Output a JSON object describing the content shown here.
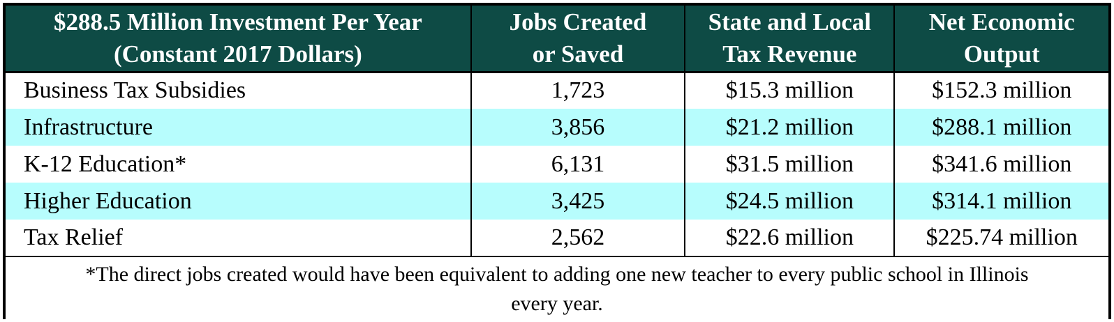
{
  "colors": {
    "header_bg": "#0E4B45",
    "header_text": "#FFFFFF",
    "row_stripe_bg": "#B7FDFD",
    "row_bg": "#FFFFFF",
    "border": "#000000"
  },
  "table": {
    "headers": [
      {
        "line1": "$288.5 Million Investment Per Year",
        "line2": "(Constant 2017 Dollars)"
      },
      {
        "line1": "Jobs Created",
        "line2": "or Saved"
      },
      {
        "line1": "State and Local",
        "line2": "Tax Revenue"
      },
      {
        "line1": "Net Economic",
        "line2": "Output"
      }
    ],
    "rows": [
      {
        "label": "Business Tax Subsidies",
        "jobs": "1,723",
        "tax": "$15.3 million",
        "output": "$152.3 million"
      },
      {
        "label": "Infrastructure",
        "jobs": "3,856",
        "tax": "$21.2 million",
        "output": "$288.1 million"
      },
      {
        "label": "K-12 Education*",
        "jobs": "6,131",
        "tax": "$31.5 million",
        "output": "$341.6 million"
      },
      {
        "label": "Higher Education",
        "jobs": "3,425",
        "tax": "$24.5 million",
        "output": "$314.1 million"
      },
      {
        "label": "Tax Relief",
        "jobs": "2,562",
        "tax": "$22.6 million",
        "output": "$225.74 million"
      }
    ],
    "footnote_lines": [
      "*The direct jobs created would have been equivalent to adding one new teacher to every public school in Illinois",
      "every year."
    ]
  },
  "chart_data": {
    "type": "table",
    "title": "$288.5 Million Investment Per Year (Constant 2017 Dollars)",
    "columns": [
      "$288.5 Million Investment Per Year (Constant 2017 Dollars)",
      "Jobs Created or Saved",
      "State and Local Tax Revenue",
      "Net Economic Output"
    ],
    "rows": [
      [
        "Business Tax Subsidies",
        "1,723",
        "$15.3 million",
        "$152.3 million"
      ],
      [
        "Infrastructure",
        "3,856",
        "$21.2 million",
        "$288.1 million"
      ],
      [
        "K-12 Education*",
        "6,131",
        "$31.5 million",
        "$341.6 million"
      ],
      [
        "Higher Education",
        "3,425",
        "$24.5 million",
        "$314.1 million"
      ],
      [
        "Tax Relief",
        "2,562",
        "$22.6 million",
        "$225.74 million"
      ]
    ],
    "numeric": {
      "categories": [
        "Business Tax Subsidies",
        "Infrastructure",
        "K-12 Education",
        "Higher Education",
        "Tax Relief"
      ],
      "series": [
        {
          "name": "Jobs Created or Saved",
          "values": [
            1723,
            3856,
            6131,
            3425,
            2562
          ]
        },
        {
          "name": "State and Local Tax Revenue ($M)",
          "values": [
            15.3,
            21.2,
            31.5,
            24.5,
            22.6
          ]
        },
        {
          "name": "Net Economic Output ($M)",
          "values": [
            152.3,
            288.1,
            341.6,
            314.1,
            225.74
          ]
        }
      ]
    },
    "footnote": "*The direct jobs created would have been equivalent to adding one new teacher to every public school in Illinois every year."
  }
}
